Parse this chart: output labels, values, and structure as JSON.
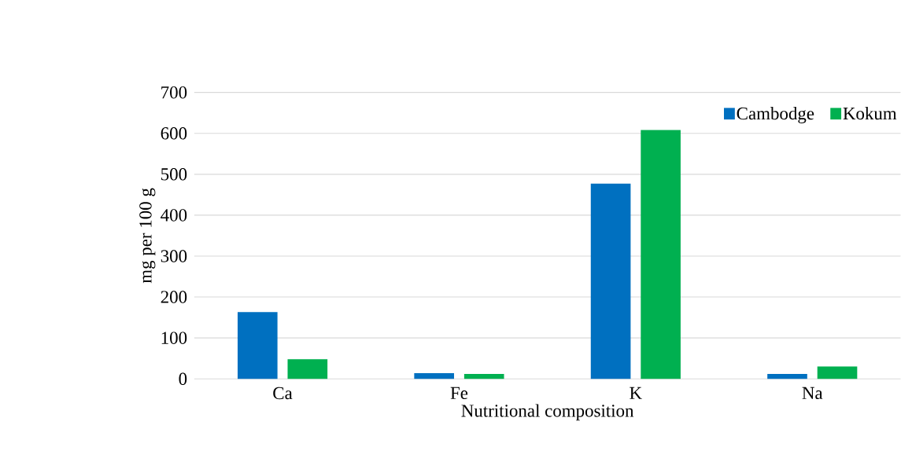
{
  "chart_data": {
    "type": "bar",
    "xlabel": "Nutritional composition",
    "ylabel": "mg per 100 g",
    "categories": [
      "Ca",
      "Fe",
      "K",
      "Na"
    ],
    "series": [
      {
        "name": "Cambodge",
        "color": "#0070c0",
        "values": [
          163,
          14,
          477,
          12
        ]
      },
      {
        "name": "Kokum",
        "color": "#00b050",
        "values": [
          48,
          12,
          608,
          30
        ]
      }
    ],
    "ylim": [
      0,
      700
    ],
    "yticks": [
      0,
      100,
      200,
      300,
      400,
      500,
      600,
      700
    ],
    "grid": "y",
    "legend": "top right"
  }
}
